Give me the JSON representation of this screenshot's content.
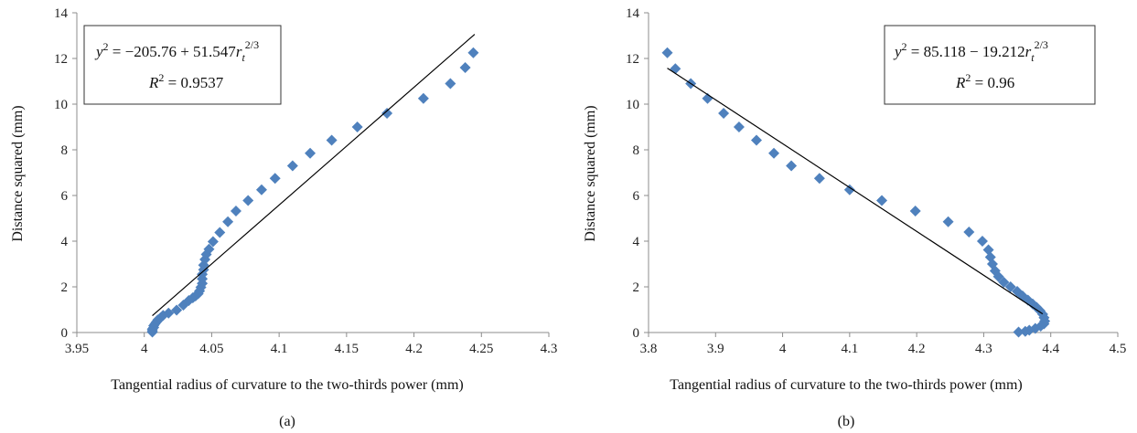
{
  "chart_data": [
    {
      "type": "scatter",
      "panel_label": "(a)",
      "xlabel": "Tangential radius of curvature to the two-thirds power (mm)",
      "ylabel": "Distance squared (mm)",
      "xlim": [
        3.95,
        4.3
      ],
      "ylim": [
        0,
        14
      ],
      "xticks": [
        "3.95",
        "4",
        "4.05",
        "4.1",
        "4.15",
        "4.2",
        "4.25",
        "4.3"
      ],
      "yticks": [
        "0",
        "2",
        "4",
        "6",
        "8",
        "10",
        "12",
        "14"
      ],
      "grid": false,
      "marker_color": "#4f81bd",
      "trendline_color": "#000000",
      "equation": {
        "y": "y",
        "exp": "2",
        "rhs": " = −205.76 + 51.547",
        "r": "r",
        "sub": "t",
        "pow": "2/3",
        "r2_base": "R",
        "r2_exp": "2",
        "r2_rhs": " = 0.9537"
      },
      "trendline": {
        "intercept": -205.76,
        "slope": 51.547,
        "x_range": [
          4.006,
          4.245
        ]
      },
      "points": [
        [
          4.006,
          0.02
        ],
        [
          4.006,
          0.08
        ],
        [
          4.006,
          0.15
        ],
        [
          4.007,
          0.22
        ],
        [
          4.007,
          0.3
        ],
        [
          4.008,
          0.38
        ],
        [
          4.009,
          0.46
        ],
        [
          4.01,
          0.55
        ],
        [
          4.012,
          0.64
        ],
        [
          4.014,
          0.75
        ],
        [
          4.018,
          0.85
        ],
        [
          4.024,
          0.98
        ],
        [
          4.029,
          1.2
        ],
        [
          4.033,
          1.4
        ],
        [
          4.036,
          1.52
        ],
        [
          4.038,
          1.6
        ],
        [
          4.04,
          1.7
        ],
        [
          4.041,
          1.82
        ],
        [
          4.042,
          1.98
        ],
        [
          4.043,
          2.15
        ],
        [
          4.043,
          2.35
        ],
        [
          4.043,
          2.55
        ],
        [
          4.044,
          2.75
        ],
        [
          4.044,
          2.95
        ],
        [
          4.045,
          3.2
        ],
        [
          4.046,
          3.42
        ],
        [
          4.048,
          3.65
        ],
        [
          4.051,
          3.98
        ],
        [
          4.056,
          4.38
        ],
        [
          4.062,
          4.85
        ],
        [
          4.068,
          5.32
        ],
        [
          4.077,
          5.78
        ],
        [
          4.087,
          6.25
        ],
        [
          4.097,
          6.75
        ],
        [
          4.11,
          7.3
        ],
        [
          4.123,
          7.85
        ],
        [
          4.139,
          8.42
        ],
        [
          4.158,
          9.0
        ],
        [
          4.18,
          9.6
        ],
        [
          4.207,
          10.25
        ],
        [
          4.227,
          10.9
        ],
        [
          4.238,
          11.6
        ],
        [
          4.244,
          12.25
        ]
      ]
    },
    {
      "type": "scatter",
      "panel_label": "(b)",
      "xlabel": "Tangential radius of curvature to the two-thirds power (mm)",
      "ylabel": "Distance squared (mm)",
      "xlim": [
        3.8,
        4.5
      ],
      "ylim": [
        0,
        14
      ],
      "xticks": [
        "3.8",
        "3.9",
        "4",
        "4.1",
        "4.2",
        "4.3",
        "4.4",
        "4.5"
      ],
      "yticks": [
        "0",
        "2",
        "4",
        "6",
        "8",
        "10",
        "12",
        "14"
      ],
      "grid": false,
      "marker_color": "#4f81bd",
      "trendline_color": "#000000",
      "equation": {
        "y": "y",
        "exp": "2",
        "rhs": " = 85.118 − 19.212",
        "r": "r",
        "sub": "t",
        "pow": "2/3",
        "r2_base": "R",
        "r2_exp": "2",
        "r2_rhs": " = 0.96"
      },
      "trendline": {
        "intercept": 85.118,
        "slope": -19.212,
        "x_range": [
          3.828,
          4.388
        ]
      },
      "points": [
        [
          3.828,
          12.25
        ],
        [
          3.84,
          11.55
        ],
        [
          3.863,
          10.9
        ],
        [
          3.888,
          10.25
        ],
        [
          3.912,
          9.6
        ],
        [
          3.935,
          9.0
        ],
        [
          3.961,
          8.42
        ],
        [
          3.987,
          7.85
        ],
        [
          4.013,
          7.3
        ],
        [
          4.055,
          6.75
        ],
        [
          4.1,
          6.25
        ],
        [
          4.148,
          5.78
        ],
        [
          4.198,
          5.32
        ],
        [
          4.247,
          4.85
        ],
        [
          4.278,
          4.4
        ],
        [
          4.298,
          4.0
        ],
        [
          4.307,
          3.62
        ],
        [
          4.31,
          3.3
        ],
        [
          4.313,
          3.0
        ],
        [
          4.317,
          2.7
        ],
        [
          4.322,
          2.45
        ],
        [
          4.33,
          2.2
        ],
        [
          4.34,
          2.0
        ],
        [
          4.35,
          1.8
        ],
        [
          4.358,
          1.6
        ],
        [
          4.366,
          1.42
        ],
        [
          4.373,
          1.25
        ],
        [
          4.379,
          1.1
        ],
        [
          4.384,
          0.95
        ],
        [
          4.388,
          0.8
        ],
        [
          4.39,
          0.65
        ],
        [
          4.391,
          0.5
        ],
        [
          4.39,
          0.38
        ],
        [
          4.385,
          0.28
        ],
        [
          4.377,
          0.18
        ],
        [
          4.368,
          0.1
        ],
        [
          4.362,
          0.05
        ],
        [
          4.352,
          0.02
        ]
      ]
    }
  ]
}
